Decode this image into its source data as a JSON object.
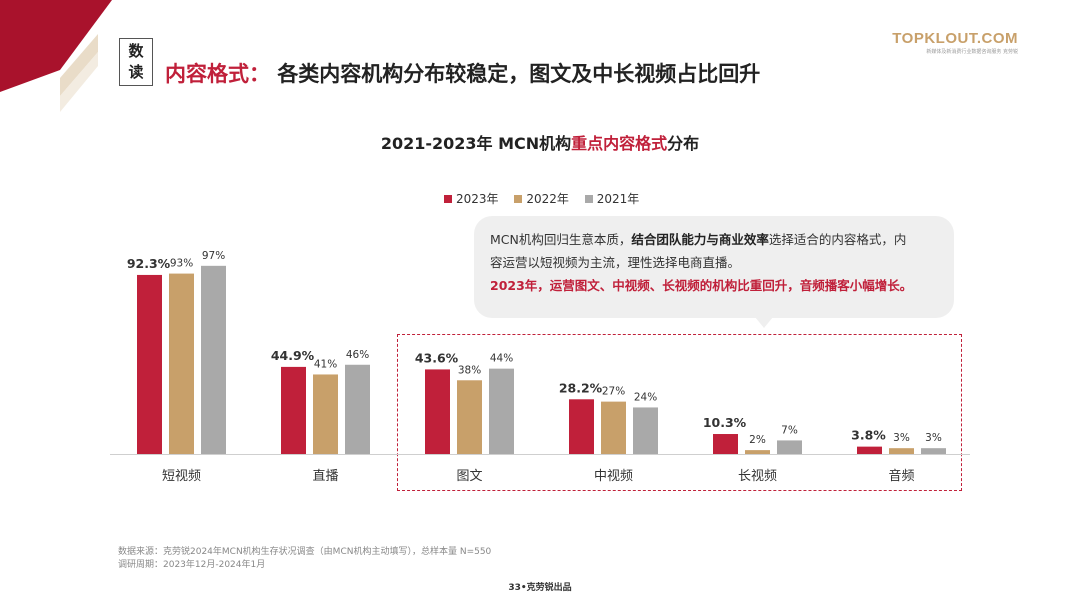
{
  "tag": {
    "line1": "数",
    "line2": "读"
  },
  "headline": {
    "keyword": "内容格式：",
    "text": "各类内容机构分布较稳定，图文及中长视频占比回升"
  },
  "logo": {
    "main": "TOPKLOUT.COM",
    "sub": "新媒体及新消费行业数据咨询服务 克劳锐"
  },
  "chart_title": {
    "prefix": "2021-2023年 MCN机构",
    "highlight": "重点内容格式",
    "suffix": "分布"
  },
  "callout": {
    "line1_pre": "MCN机构回归生意本质，",
    "line1_bold": "结合团队能力与商业效率",
    "line1_post": "选择适合的内容格式，内",
    "line2": "容运营以短视频为主流，理性选择电商直播。",
    "line3": "2023年，运营图文、中视频、长视频的机构比重回升，音频播客小幅增长。"
  },
  "colors": {
    "y2023": "#c0203a",
    "y2022": "#c8a06a",
    "y2021": "#a9a9a9",
    "accent": "#c0203a"
  },
  "chart_data": {
    "type": "bar",
    "title": "2021-2023年 MCN机构重点内容格式分布",
    "categories": [
      "短视频",
      "直播",
      "图文",
      "中视频",
      "长视频",
      "音频"
    ],
    "series": [
      {
        "name": "2023年",
        "values": [
          92.3,
          44.9,
          43.6,
          28.2,
          10.3,
          3.8
        ],
        "labels": [
          "92.3%",
          "44.9%",
          "43.6%",
          "28.2%",
          "10.3%",
          "3.8%"
        ]
      },
      {
        "name": "2022年",
        "values": [
          93,
          41,
          38,
          27,
          2,
          3
        ],
        "labels": [
          "93%",
          "41%",
          "38%",
          "27%",
          "2%",
          "3%"
        ]
      },
      {
        "name": "2021年",
        "values": [
          97,
          46,
          44,
          24,
          7,
          3
        ],
        "labels": [
          "97%",
          "46%",
          "44%",
          "24%",
          "7%",
          "3%"
        ]
      }
    ],
    "ylim": [
      0,
      100
    ],
    "xlabel": "",
    "ylabel": "",
    "legend_position": "top-center",
    "highlighted_categories": [
      "图文",
      "中视频",
      "长视频",
      "音频"
    ]
  },
  "footnote": {
    "source": "数据来源：克劳锐2024年MCN机构生存状况调查（由MCN机构主动填写），总样本量 N=550",
    "period": "调研周期：2023年12月-2024年1月"
  },
  "page_label": "33•克劳锐出品"
}
